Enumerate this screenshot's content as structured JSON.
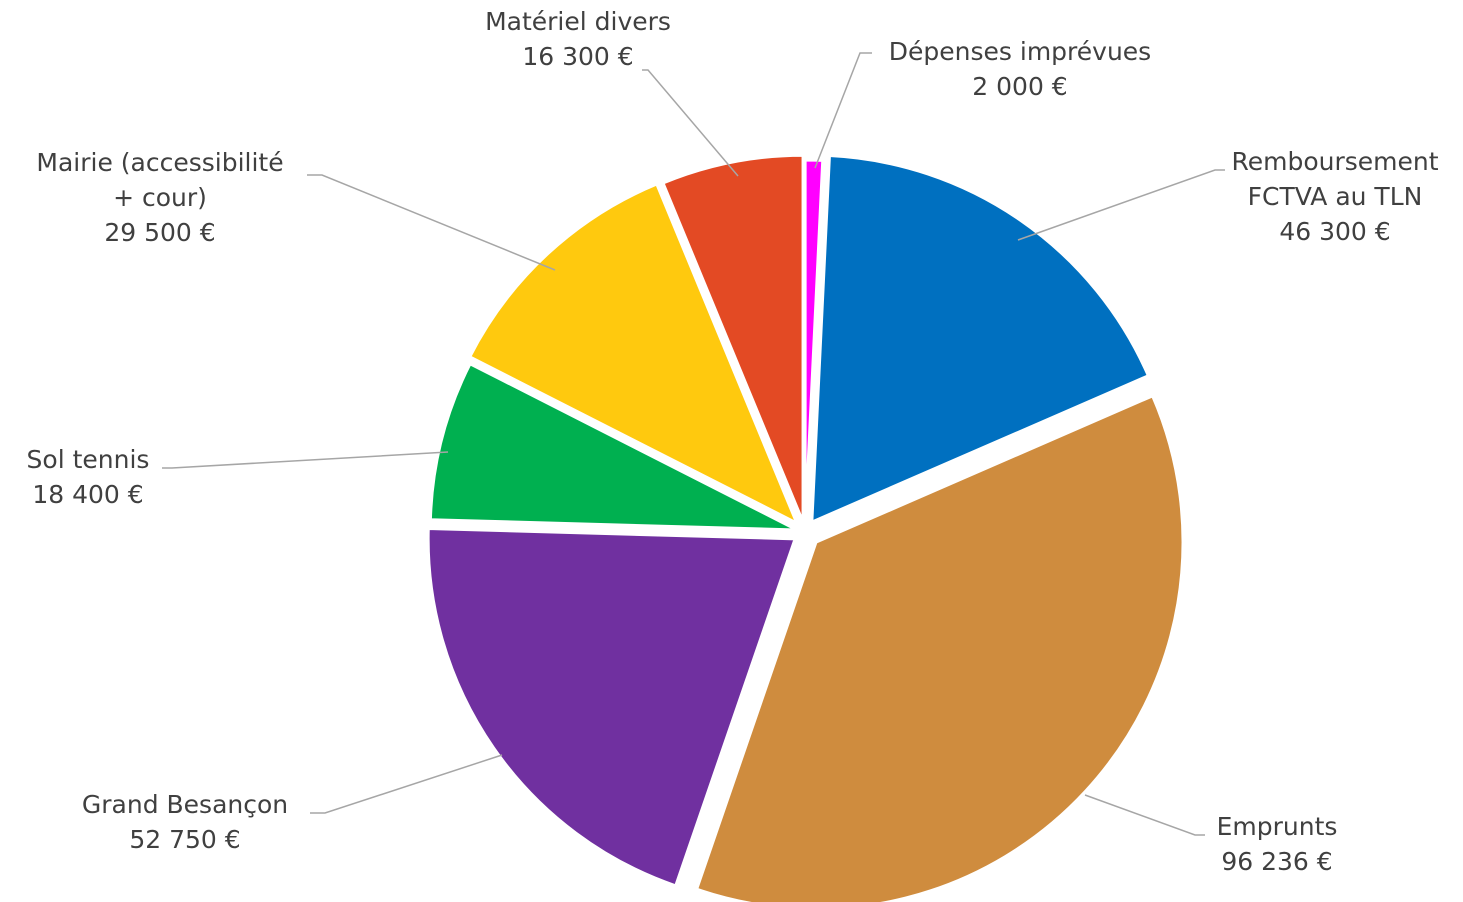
{
  "chart_data": {
    "type": "pie",
    "title": "",
    "currency": "€",
    "slices": [
      {
        "label_lines": [
          "Dépenses imprévues"
        ],
        "value_text": "2 000 €",
        "value": 2000,
        "color": "#ff00ff"
      },
      {
        "label_lines": [
          "Remboursement",
          "FCTVA au TLN"
        ],
        "value_text": "46 300 €",
        "value": 46300,
        "color": "#0070c0"
      },
      {
        "label_lines": [
          "Emprunts"
        ],
        "value_text": "96 236 €",
        "value": 96236,
        "color": "#cf8c3e"
      },
      {
        "label_lines": [
          "Grand Besançon"
        ],
        "value_text": "52 750 €",
        "value": 52750,
        "color": "#7030a0"
      },
      {
        "label_lines": [
          "Sol tennis"
        ],
        "value_text": "18 400 €",
        "value": 18400,
        "color": "#00b050"
      },
      {
        "label_lines": [
          "Mairie (accessibilité",
          "+ cour)"
        ],
        "value_text": "29 500 €",
        "value": 29500,
        "color": "#ffc90e"
      },
      {
        "label_lines": [
          "Matériel divers"
        ],
        "value_text": "16 300 €",
        "value": 16300,
        "color": "#e34a24"
      }
    ]
  }
}
